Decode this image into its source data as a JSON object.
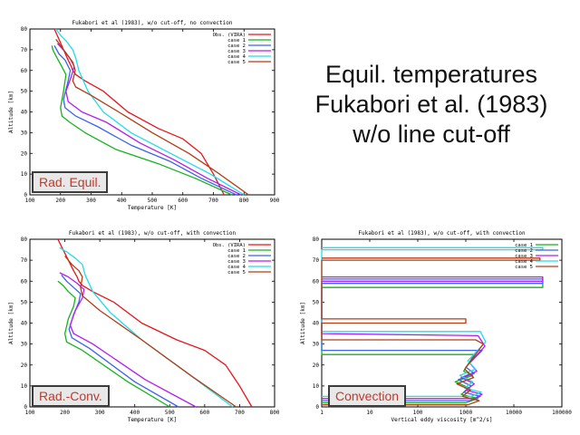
{
  "slide": {
    "title_lines": [
      "Equil. temperatures",
      "Fukabori et al. (1983)",
      "w/o line cut-off"
    ]
  },
  "colors": {
    "Obs. (VIRA)": "#e8141c",
    "case 1": "#14b31c",
    "case 2": "#3c64ec",
    "case 3": "#b41cf0",
    "case 4": "#20dcec",
    "case 5": "#b43c14",
    "badge_text": "#c0392b"
  },
  "chart_data": [
    {
      "type": "line",
      "title": "Fukabori et al (1983), w/o cut-off, no convection",
      "badge": "Rad. Equil.",
      "xlabel": "Temperature [K]",
      "ylabel": "Altitude [km]",
      "xlim": [
        100,
        900
      ],
      "ylim": [
        0,
        80
      ],
      "xticks": [
        100,
        200,
        300,
        400,
        500,
        600,
        700,
        800,
        900
      ],
      "yticks": [
        0,
        10,
        20,
        30,
        40,
        50,
        60,
        70,
        80
      ],
      "xscale": "linear",
      "grid": false,
      "legend": "top-right",
      "series": [
        {
          "name": "Obs. (VIRA)",
          "x": [
            735,
            700,
            660,
            600,
            520,
            420,
            340,
            280,
            250,
            240,
            235,
            225,
            210,
            195,
            180
          ],
          "y": [
            0,
            10,
            20,
            27,
            32,
            40,
            50,
            55,
            58,
            60,
            62,
            65,
            70,
            75,
            80
          ]
        },
        {
          "name": "case 1",
          "x": [
            760,
            640,
            520,
            380,
            280,
            230,
            205,
            200,
            210,
            218,
            200,
            185,
            175,
            172
          ],
          "y": [
            0,
            8,
            15,
            22,
            30,
            35,
            38,
            42,
            50,
            58,
            63,
            67,
            70,
            72
          ]
        },
        {
          "name": "case 2",
          "x": [
            775,
            660,
            560,
            430,
            320,
            250,
            215,
            210,
            225,
            232,
            215,
            195,
            180
          ],
          "y": [
            0,
            8,
            16,
            24,
            33,
            38,
            42,
            46,
            55,
            60,
            65,
            68,
            72
          ]
        },
        {
          "name": "case 3",
          "x": [
            790,
            680,
            570,
            460,
            350,
            270,
            225,
            218,
            235,
            245,
            230,
            215,
            190
          ],
          "y": [
            0,
            8,
            17,
            25,
            35,
            40,
            45,
            50,
            57,
            62,
            66,
            69,
            73
          ]
        },
        {
          "name": "case 4",
          "x": [
            800,
            690,
            560,
            430,
            340,
            290,
            260,
            250,
            240,
            220,
            200,
            185
          ],
          "y": [
            0,
            10,
            20,
            30,
            40,
            50,
            60,
            66,
            70,
            74,
            77,
            80
          ]
        },
        {
          "name": "case 5",
          "x": [
            815,
            720,
            620,
            500,
            390,
            300,
            250,
            240,
            248,
            240,
            220,
            200,
            185
          ],
          "y": [
            0,
            10,
            20,
            30,
            40,
            48,
            52,
            55,
            60,
            64,
            68,
            72,
            75
          ]
        }
      ]
    },
    {
      "type": "line",
      "title": "Fukabori et al (1983), w/o cut-off, with convection",
      "badge": "Rad.-Conv.",
      "xlabel": "Temperature [K]",
      "ylabel": "Altitude [km]",
      "xlim": [
        100,
        800
      ],
      "ylim": [
        0,
        80
      ],
      "xticks": [
        100,
        200,
        300,
        400,
        500,
        600,
        700,
        800
      ],
      "yticks": [
        0,
        10,
        20,
        30,
        40,
        50,
        60,
        70,
        80
      ],
      "xscale": "linear",
      "grid": false,
      "legend": "top-right",
      "series": [
        {
          "name": "Obs. (VIRA)",
          "x": [
            735,
            700,
            660,
            600,
            520,
            420,
            340,
            280,
            250,
            240,
            235,
            225,
            210,
            195,
            180
          ],
          "y": [
            0,
            10,
            20,
            27,
            32,
            40,
            50,
            55,
            58,
            60,
            62,
            65,
            70,
            75,
            80
          ]
        },
        {
          "name": "case 1",
          "x": [
            500,
            380,
            250,
            205,
            200,
            210,
            225,
            230,
            210,
            195,
            180
          ],
          "y": [
            0,
            12,
            27,
            31,
            35,
            42,
            48,
            52,
            55,
            58,
            60
          ]
        },
        {
          "name": "case 2",
          "x": [
            525,
            400,
            270,
            220,
            212,
            225,
            240,
            245,
            225,
            205,
            190
          ],
          "y": [
            0,
            12,
            28,
            33,
            37,
            44,
            50,
            54,
            57,
            60,
            63
          ]
        },
        {
          "name": "case 3",
          "x": [
            575,
            430,
            280,
            225,
            215,
            230,
            250,
            255,
            235,
            210,
            185
          ],
          "y": [
            0,
            13,
            30,
            35,
            39,
            46,
            52,
            56,
            59,
            62,
            64
          ]
        },
        {
          "name": "case 4",
          "x": [
            680,
            560,
            420,
            330,
            280,
            258,
            250,
            230,
            205,
            185
          ],
          "y": [
            0,
            15,
            32,
            45,
            55,
            63,
            68,
            71,
            74,
            76
          ]
        },
        {
          "name": "case 5",
          "x": [
            690,
            560,
            420,
            300,
            250,
            245,
            250,
            240,
            220,
            200
          ],
          "y": [
            0,
            15,
            32,
            46,
            53,
            57,
            62,
            65,
            68,
            72
          ]
        }
      ]
    },
    {
      "type": "line",
      "title": "Fukabori et al (1983), w/o cut-off, with convection",
      "badge": "Convection",
      "xlabel": "Vertical eddy viscosity [m^2/s]",
      "ylabel": "Altitude [km]",
      "xlim": [
        1,
        100000
      ],
      "ylim": [
        0,
        80
      ],
      "xticks": [
        1,
        10,
        100,
        1000,
        10000,
        100000
      ],
      "yticks": [
        0,
        10,
        20,
        30,
        40,
        50,
        60,
        70,
        80
      ],
      "xscale": "log",
      "grid": false,
      "legend": "top-right",
      "series": [
        {
          "name": "case 1",
          "x": [
            1,
            1000,
            1800,
            800,
            1200,
            600,
            1400,
            900,
            1500,
            700,
            1,
            1,
            40000,
            40000,
            1
          ],
          "y": [
            2,
            2,
            4,
            6,
            9,
            12,
            15,
            17,
            25,
            25,
            25,
            57,
            57,
            59,
            59
          ]
        },
        {
          "name": "case 2",
          "x": [
            1,
            1200,
            2000,
            900,
            1300,
            700,
            1500,
            1000,
            2200,
            1500,
            1,
            1,
            40000,
            40000,
            1
          ],
          "y": [
            3,
            3,
            5,
            7,
            10,
            13,
            16,
            19,
            27,
            27,
            27,
            59,
            59,
            61,
            61
          ]
        },
        {
          "name": "case 3",
          "x": [
            1,
            1500,
            2200,
            1000,
            1500,
            800,
            1700,
            1200,
            2500,
            1800,
            1,
            1,
            40000,
            40000,
            1
          ],
          "y": [
            4,
            4,
            6,
            8,
            11,
            14,
            17,
            21,
            29,
            34,
            35,
            60,
            60,
            62,
            62
          ]
        },
        {
          "name": "case 4",
          "x": [
            1,
            1300,
            2100,
            950,
            1400,
            750,
            1600,
            1100,
            2600,
            2000,
            1,
            1,
            40000,
            40000,
            1
          ],
          "y": [
            5,
            5,
            7,
            9,
            12,
            15,
            18,
            22,
            31,
            36,
            36,
            75,
            75,
            76,
            76
          ]
        },
        {
          "name": "case 5",
          "x": [
            1,
            1100,
            1900,
            850,
            1250,
            650,
            1450,
            950,
            2300,
            1600,
            1,
            1,
            1000,
            1000,
            1,
            1,
            35000,
            35000,
            1
          ],
          "y": [
            1,
            1,
            3,
            5,
            8,
            11,
            14,
            18,
            30,
            32,
            32,
            40,
            40,
            42,
            42,
            70,
            70,
            71,
            71
          ]
        }
      ]
    }
  ]
}
